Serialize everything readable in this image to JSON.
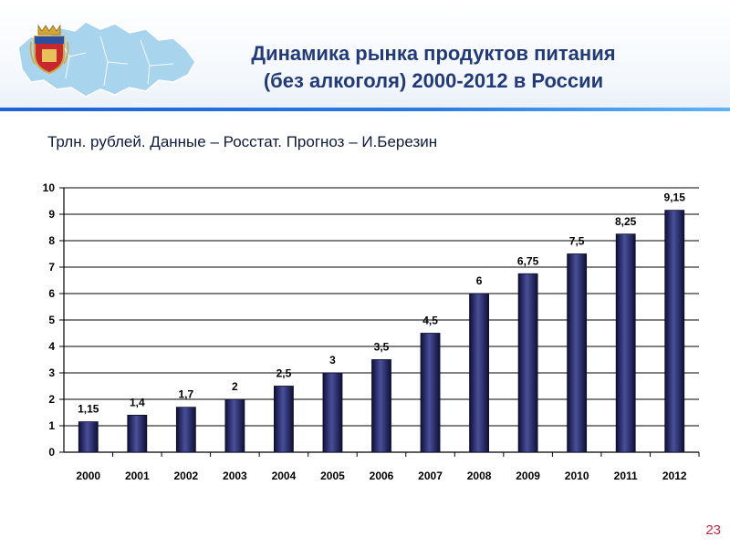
{
  "header": {
    "title_line1": "Динамика рынка продуктов питания",
    "title_line2": "(без алкоголя) 2000-2012  в России",
    "emblem_icon": "coat-of-arms-icon",
    "map_icon": "region-map-icon"
  },
  "subtitle": "Трлн. рублей. Данные – Росстат. Прогноз – И.Березин",
  "page_number": "23",
  "colors": {
    "title": "#233a78",
    "bar_dark": "#0e1038",
    "bar_light": "#4a4f9a",
    "header_rule": "#2c7be5",
    "page_number": "#c02a4a"
  },
  "chart_data": {
    "type": "bar",
    "categories": [
      "2000",
      "2001",
      "2002",
      "2003",
      "2004",
      "2005",
      "2006",
      "2007",
      "2008",
      "2009",
      "2010",
      "2011",
      "2012"
    ],
    "values": [
      1.15,
      1.4,
      1.7,
      2,
      2.5,
      3,
      3.5,
      4.5,
      6,
      6.75,
      7.5,
      8.25,
      9.15
    ],
    "value_labels": [
      "1,15",
      "1,4",
      "1,7",
      "2",
      "2,5",
      "3",
      "3,5",
      "4,5",
      "6",
      "6,75",
      "7,5",
      "8,25",
      "9,15"
    ],
    "y_ticks": [
      "0",
      "1",
      "2",
      "3",
      "4",
      "5",
      "6",
      "7",
      "8",
      "9",
      "10"
    ],
    "ylim": [
      0,
      10
    ],
    "grid": true,
    "legend": "none"
  }
}
